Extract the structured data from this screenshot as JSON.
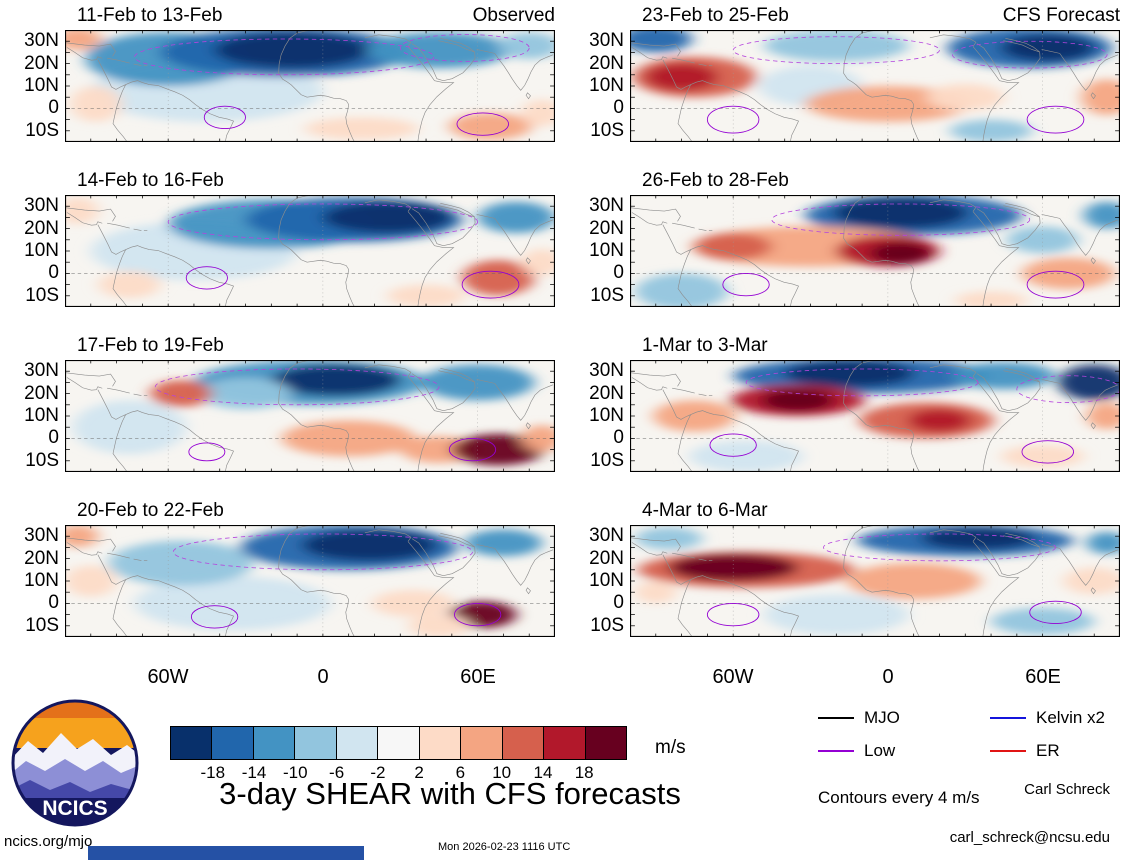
{
  "main_title": "3-day SHEAR with CFS forecasts",
  "unit_label": "m/s",
  "logo_text": "NCICS",
  "legend": {
    "items": [
      {
        "label": "MJO",
        "color": "#000000"
      },
      {
        "label": "Kelvin x2",
        "color": "#1414dc"
      },
      {
        "label": "Low",
        "color": "#9400d3"
      },
      {
        "label": "ER",
        "color": "#e11414"
      }
    ],
    "note": "Contours every 4 m/s"
  },
  "credits": {
    "author": "Carl Schreck",
    "email": "carl_schreck@ncsu.edu",
    "website": "ncics.org/mjo",
    "timestamp": "Mon 2026-02-23 1116 UTC"
  },
  "colors": {
    "footer_bar": "#2551a5"
  },
  "chart_data": {
    "type": "heatmap",
    "subtype": "filled-contour-anomaly-maps",
    "column_headers": [
      "Observed",
      "CFS Forecast"
    ],
    "lon_range": [
      -100,
      90
    ],
    "lat_range": [
      -15,
      35
    ],
    "x_ticks": [
      {
        "label": "60W",
        "lon": -60
      },
      {
        "label": "0",
        "lon": 0
      },
      {
        "label": "60E",
        "lon": 60
      }
    ],
    "y_ticks": [
      {
        "label": "30N",
        "lat": 30
      },
      {
        "label": "20N",
        "lat": 20
      },
      {
        "label": "10N",
        "lat": 10
      },
      {
        "label": "0",
        "lat": 0
      },
      {
        "label": "10S",
        "lat": -10
      }
    ],
    "colorbar": {
      "levels": [
        -18,
        -14,
        -10,
        -6,
        -2,
        2,
        6,
        10,
        14,
        18
      ],
      "colors": [
        "#08306b",
        "#2166ac",
        "#4393c3",
        "#92c5de",
        "#d1e5f0",
        "#f7f7f7",
        "#fddbc7",
        "#f4a582",
        "#d6604d",
        "#b2182b",
        "#67001f"
      ],
      "unit": "m/s",
      "contour_interval_mps": 4
    },
    "panels": [
      {
        "title": "11-Feb to 13-Feb",
        "corner_label": "Observed",
        "anomalies": [
          {
            "lon": -45,
            "lat": 8,
            "rlon": 45,
            "rlat": 14,
            "value": -4
          },
          {
            "lon": -60,
            "lat": 22,
            "rlon": 32,
            "rlat": 12,
            "value": -10
          },
          {
            "lon": -15,
            "lat": 25,
            "rlon": 48,
            "rlat": 11,
            "value": -14
          },
          {
            "lon": -12,
            "lat": 26,
            "rlon": 30,
            "rlat": 8,
            "value": -20
          },
          {
            "lon": 45,
            "lat": 26,
            "rlon": 28,
            "rlat": 8,
            "value": -12
          },
          {
            "lon": 80,
            "lat": 28,
            "rlon": 12,
            "rlat": 6,
            "value": -8
          },
          {
            "lon": -95,
            "lat": 31,
            "rlon": 9,
            "rlat": 5,
            "value": 10
          },
          {
            "lon": -88,
            "lat": 2,
            "rlon": 10,
            "rlat": 8,
            "value": 6
          },
          {
            "lon": 15,
            "lat": -9,
            "rlon": 22,
            "rlat": 5,
            "value": 5
          },
          {
            "lon": 65,
            "lat": -8,
            "rlon": 16,
            "rlat": 6,
            "value": 8
          },
          {
            "lon": 85,
            "lat": -2,
            "rlon": 8,
            "rlat": 6,
            "value": 6
          }
        ],
        "low_contours": [
          {
            "lon": -38,
            "lat": -4,
            "rlon": 8,
            "rlat": 5
          },
          {
            "lon": 62,
            "lat": -7,
            "rlon": 10,
            "rlat": 5
          }
        ],
        "dashed_contours": [
          {
            "lon": -15,
            "lat": 23,
            "rlon": 58,
            "rlat": 8
          },
          {
            "lon": 55,
            "lat": 27,
            "rlon": 25,
            "rlat": 6
          }
        ]
      },
      {
        "title": "14-Feb to 16-Feb",
        "corner_label": "",
        "anomalies": [
          {
            "lon": -50,
            "lat": 10,
            "rlon": 40,
            "rlat": 13,
            "value": -5
          },
          {
            "lon": -20,
            "lat": 22,
            "rlon": 40,
            "rlat": 11,
            "value": -10
          },
          {
            "lon": 12,
            "lat": 24,
            "rlon": 42,
            "rlat": 10,
            "value": -16
          },
          {
            "lon": 25,
            "lat": 25,
            "rlon": 25,
            "rlat": 7,
            "value": -20
          },
          {
            "lon": 75,
            "lat": 25,
            "rlon": 15,
            "rlat": 7,
            "value": -10
          },
          {
            "lon": -95,
            "lat": 28,
            "rlon": 8,
            "rlat": 6,
            "value": 6
          },
          {
            "lon": -75,
            "lat": -5,
            "rlon": 12,
            "rlat": 6,
            "value": 4
          },
          {
            "lon": 40,
            "lat": -10,
            "rlon": 15,
            "rlat": 5,
            "value": 6
          },
          {
            "lon": 68,
            "lat": -2,
            "rlon": 14,
            "rlat": 8,
            "value": 12
          },
          {
            "lon": 85,
            "lat": 5,
            "rlon": 8,
            "rlat": 6,
            "value": 6
          }
        ],
        "low_contours": [
          {
            "lon": -45,
            "lat": -2,
            "rlon": 8,
            "rlat": 5
          },
          {
            "lon": 65,
            "lat": -5,
            "rlon": 11,
            "rlat": 6
          }
        ],
        "dashed_contours": [
          {
            "lon": 0,
            "lat": 23,
            "rlon": 60,
            "rlat": 8
          }
        ]
      },
      {
        "title": "17-Feb to 19-Feb",
        "corner_label": "",
        "anomalies": [
          {
            "lon": -75,
            "lat": 5,
            "rlon": 22,
            "rlat": 12,
            "value": -5
          },
          {
            "lon": -5,
            "lat": 25,
            "rlon": 45,
            "rlat": 10,
            "value": -12
          },
          {
            "lon": 5,
            "lat": 26,
            "rlon": 25,
            "rlat": 7,
            "value": -18
          },
          {
            "lon": 60,
            "lat": 25,
            "rlon": 22,
            "rlat": 8,
            "value": -12
          },
          {
            "lon": -30,
            "lat": 20,
            "rlon": 18,
            "rlat": 7,
            "value": -8
          },
          {
            "lon": -55,
            "lat": 20,
            "rlon": 12,
            "rlat": 6,
            "value": 14
          },
          {
            "lon": 10,
            "lat": 0,
            "rlon": 26,
            "rlat": 8,
            "value": 7
          },
          {
            "lon": 45,
            "lat": -5,
            "rlon": 15,
            "rlat": 6,
            "value": 8
          },
          {
            "lon": 68,
            "lat": -5,
            "rlon": 18,
            "rlat": 7,
            "value": 20
          },
          {
            "lon": 85,
            "lat": 0,
            "rlon": 8,
            "rlat": 6,
            "value": 8
          }
        ],
        "low_contours": [
          {
            "lon": -45,
            "lat": -6,
            "rlon": 7,
            "rlat": 4
          },
          {
            "lon": 58,
            "lat": -5,
            "rlon": 9,
            "rlat": 5
          }
        ],
        "dashed_contours": [
          {
            "lon": -10,
            "lat": 23,
            "rlon": 55,
            "rlat": 8
          }
        ]
      },
      {
        "title": "20-Feb to 22-Feb",
        "corner_label": "",
        "anomalies": [
          {
            "lon": -35,
            "lat": 0,
            "rlon": 38,
            "rlat": 12,
            "value": -5
          },
          {
            "lon": -55,
            "lat": 18,
            "rlon": 28,
            "rlat": 10,
            "value": -8
          },
          {
            "lon": 10,
            "lat": 25,
            "rlon": 42,
            "rlat": 10,
            "value": -16
          },
          {
            "lon": 18,
            "lat": 26,
            "rlon": 26,
            "rlat": 7,
            "value": -20
          },
          {
            "lon": 70,
            "lat": 27,
            "rlon": 15,
            "rlat": 6,
            "value": -10
          },
          {
            "lon": -90,
            "lat": 10,
            "rlon": 10,
            "rlat": 7,
            "value": 6
          },
          {
            "lon": -95,
            "lat": 30,
            "rlon": 8,
            "rlat": 5,
            "value": 8
          },
          {
            "lon": 35,
            "lat": 0,
            "rlon": 16,
            "rlat": 6,
            "value": 6
          },
          {
            "lon": 62,
            "lat": -5,
            "rlon": 13,
            "rlat": 6,
            "value": 20
          },
          {
            "lon": 45,
            "lat": -10,
            "rlon": 12,
            "rlat": 5,
            "value": 6
          }
        ],
        "low_contours": [
          {
            "lon": -42,
            "lat": -6,
            "rlon": 9,
            "rlat": 5
          },
          {
            "lon": 60,
            "lat": -5,
            "rlon": 9,
            "rlat": 5
          }
        ],
        "dashed_contours": [
          {
            "lon": 0,
            "lat": 23,
            "rlon": 58,
            "rlat": 8
          }
        ]
      },
      {
        "title": "23-Feb to 25-Feb",
        "corner_label": "CFS Forecast",
        "anomalies": [
          {
            "lon": -30,
            "lat": 10,
            "rlon": 20,
            "rlat": 9,
            "value": -5
          },
          {
            "lon": -20,
            "lat": 28,
            "rlon": 28,
            "rlat": 7,
            "value": -8
          },
          {
            "lon": -90,
            "lat": 31,
            "rlon": 14,
            "rlat": 6,
            "value": -14
          },
          {
            "lon": 55,
            "lat": 27,
            "rlon": 32,
            "rlat": 9,
            "value": -16
          },
          {
            "lon": 62,
            "lat": 27,
            "rlon": 18,
            "rlat": 6,
            "value": -20
          },
          {
            "lon": 40,
            "lat": -10,
            "rlon": 16,
            "rlat": 5,
            "value": -6
          },
          {
            "lon": -75,
            "lat": 14,
            "rlon": 24,
            "rlat": 9,
            "value": 14
          },
          {
            "lon": -80,
            "lat": 14,
            "rlon": 14,
            "rlat": 6,
            "value": 18
          },
          {
            "lon": 0,
            "lat": 2,
            "rlon": 32,
            "rlat": 8,
            "value": 8
          },
          {
            "lon": 30,
            "lat": 5,
            "rlon": 15,
            "rlat": 6,
            "value": 6
          },
          {
            "lon": 85,
            "lat": 5,
            "rlon": 10,
            "rlat": 8,
            "value": 10
          }
        ],
        "low_contours": [
          {
            "lon": -60,
            "lat": -5,
            "rlon": 10,
            "rlat": 6
          },
          {
            "lon": 65,
            "lat": -5,
            "rlon": 11,
            "rlat": 6
          }
        ],
        "dashed_contours": [
          {
            "lon": -20,
            "lat": 26,
            "rlon": 40,
            "rlat": 6
          },
          {
            "lon": 55,
            "lat": 24,
            "rlon": 30,
            "rlat": 6
          }
        ]
      },
      {
        "title": "26-Feb to 28-Feb",
        "corner_label": "",
        "anomalies": [
          {
            "lon": -80,
            "lat": -8,
            "rlon": 18,
            "rlat": 8,
            "value": -8
          },
          {
            "lon": 60,
            "lat": 15,
            "rlon": 14,
            "rlat": 6,
            "value": -6
          },
          {
            "lon": 10,
            "lat": 26,
            "rlon": 42,
            "rlat": 9,
            "value": -16
          },
          {
            "lon": 5,
            "lat": 27,
            "rlon": 26,
            "rlat": 7,
            "value": -20
          },
          {
            "lon": 85,
            "lat": 26,
            "rlon": 9,
            "rlat": 6,
            "value": -12
          },
          {
            "lon": -30,
            "lat": 12,
            "rlon": 46,
            "rlat": 9,
            "value": 10
          },
          {
            "lon": 0,
            "lat": 10,
            "rlon": 20,
            "rlat": 7,
            "value": 16
          },
          {
            "lon": 5,
            "lat": 9,
            "rlon": 12,
            "rlat": 5,
            "value": 20
          },
          {
            "lon": 70,
            "lat": 0,
            "rlon": 18,
            "rlat": 7,
            "value": 8
          },
          {
            "lon": -60,
            "lat": 12,
            "rlon": 15,
            "rlat": 6,
            "value": 12
          },
          {
            "lon": 40,
            "lat": -12,
            "rlon": 14,
            "rlat": 4,
            "value": 6
          }
        ],
        "low_contours": [
          {
            "lon": -55,
            "lat": -5,
            "rlon": 9,
            "rlat": 5
          },
          {
            "lon": 65,
            "lat": -5,
            "rlon": 11,
            "rlat": 6
          }
        ],
        "dashed_contours": [
          {
            "lon": 5,
            "lat": 24,
            "rlon": 50,
            "rlat": 7
          }
        ]
      },
      {
        "title": "1-Mar to 3-Mar",
        "corner_label": "",
        "anomalies": [
          {
            "lon": -55,
            "lat": -8,
            "rlon": 22,
            "rlat": 7,
            "value": -5
          },
          {
            "lon": -10,
            "lat": 28,
            "rlon": 50,
            "rlat": 8,
            "value": -14
          },
          {
            "lon": -15,
            "lat": 29,
            "rlon": 25,
            "rlat": 6,
            "value": -18
          },
          {
            "lon": 80,
            "lat": 25,
            "rlon": 14,
            "rlat": 8,
            "value": -20
          },
          {
            "lon": 45,
            "lat": 28,
            "rlon": 20,
            "rlat": 6,
            "value": -10
          },
          {
            "lon": -75,
            "lat": 10,
            "rlon": 16,
            "rlat": 7,
            "value": 8
          },
          {
            "lon": -35,
            "lat": 17,
            "rlon": 26,
            "rlat": 7,
            "value": 16
          },
          {
            "lon": -35,
            "lat": 17,
            "rlon": 14,
            "rlat": 5,
            "value": 20
          },
          {
            "lon": 15,
            "lat": 8,
            "rlon": 26,
            "rlat": 8,
            "value": 12
          },
          {
            "lon": 20,
            "lat": 8,
            "rlon": 12,
            "rlat": 5,
            "value": 16
          },
          {
            "lon": 60,
            "lat": -8,
            "rlon": 16,
            "rlat": 5,
            "value": 6
          },
          {
            "lon": 85,
            "lat": 10,
            "rlon": 8,
            "rlat": 6,
            "value": 8
          }
        ],
        "low_contours": [
          {
            "lon": -60,
            "lat": -3,
            "rlon": 9,
            "rlat": 5
          },
          {
            "lon": 62,
            "lat": -6,
            "rlon": 10,
            "rlat": 5
          }
        ],
        "dashed_contours": [
          {
            "lon": -10,
            "lat": 25,
            "rlon": 45,
            "rlat": 6
          },
          {
            "lon": 70,
            "lat": 22,
            "rlon": 20,
            "rlat": 6
          }
        ]
      },
      {
        "title": "4-Mar to 6-Mar",
        "corner_label": "",
        "anomalies": [
          {
            "lon": -20,
            "lat": -5,
            "rlon": 28,
            "rlat": 9,
            "value": -4
          },
          {
            "lon": 30,
            "lat": 28,
            "rlon": 42,
            "rlat": 7,
            "value": -14
          },
          {
            "lon": 35,
            "lat": 29,
            "rlon": 22,
            "rlat": 5,
            "value": -18
          },
          {
            "lon": -85,
            "lat": 29,
            "rlon": 13,
            "rlat": 5,
            "value": -8
          },
          {
            "lon": 85,
            "lat": 27,
            "rlon": 8,
            "rlat": 5,
            "value": -10
          },
          {
            "lon": 60,
            "lat": -8,
            "rlon": 20,
            "rlat": 6,
            "value": -8
          },
          {
            "lon": -55,
            "lat": 15,
            "rlon": 42,
            "rlat": 8,
            "value": 14
          },
          {
            "lon": -60,
            "lat": 16,
            "rlon": 25,
            "rlat": 6,
            "value": 20
          },
          {
            "lon": 10,
            "lat": 10,
            "rlon": 26,
            "rlat": 8,
            "value": 10
          },
          {
            "lon": 80,
            "lat": 10,
            "rlon": 12,
            "rlat": 6,
            "value": 6
          },
          {
            "lon": -90,
            "lat": 5,
            "rlon": 8,
            "rlat": 5,
            "value": 6
          }
        ],
        "low_contours": [
          {
            "lon": -60,
            "lat": -5,
            "rlon": 10,
            "rlat": 5
          },
          {
            "lon": 65,
            "lat": -4,
            "rlon": 10,
            "rlat": 5
          }
        ],
        "dashed_contours": [
          {
            "lon": 20,
            "lat": 25,
            "rlon": 45,
            "rlat": 6
          }
        ]
      }
    ]
  }
}
